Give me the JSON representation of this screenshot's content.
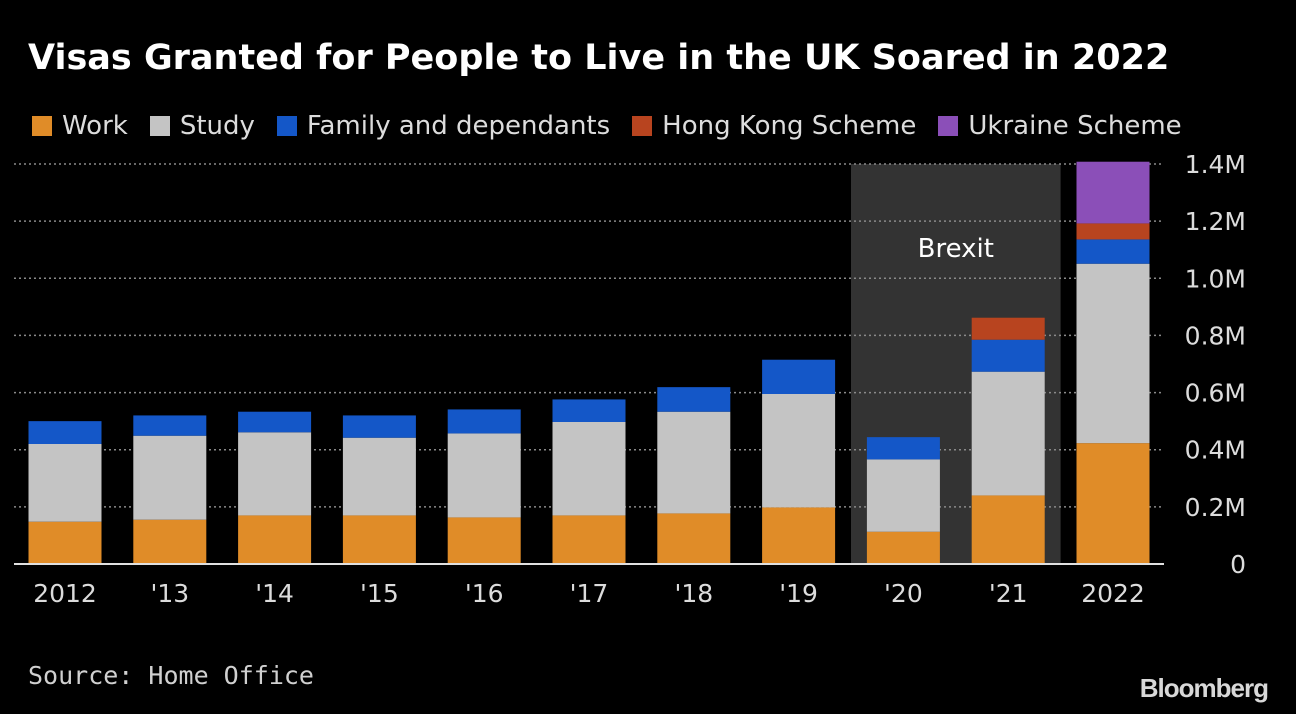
{
  "chart_data": {
    "type": "bar",
    "stacked": true,
    "title": "Visas Granted for People to Live in the UK Soared in 2022",
    "categories": [
      "2012",
      "'13",
      "'14",
      "'15",
      "'16",
      "'17",
      "'18",
      "'19",
      "'20",
      "'21",
      "2022"
    ],
    "series": [
      {
        "name": "Work",
        "color": "#e08c28",
        "values": [
          148000,
          155000,
          170000,
          170000,
          163000,
          170000,
          177000,
          198000,
          113000,
          240000,
          423000
        ]
      },
      {
        "name": "Study",
        "color": "#c4c4c4",
        "values": [
          272000,
          294000,
          291000,
          272000,
          294000,
          327000,
          356000,
          397000,
          253000,
          433000,
          628000
        ]
      },
      {
        "name": "Family and dependants",
        "color": "#1457c8",
        "values": [
          80000,
          71000,
          72000,
          78000,
          84000,
          79000,
          86000,
          120000,
          78000,
          112000,
          85000
        ]
      },
      {
        "name": "Hong Kong Scheme",
        "color": "#b8441f",
        "values": [
          0,
          0,
          0,
          0,
          0,
          0,
          0,
          0,
          0,
          77000,
          56000
        ]
      },
      {
        "name": "Ukraine Scheme",
        "color": "#8b4fb8",
        "values": [
          0,
          0,
          0,
          0,
          0,
          0,
          0,
          0,
          0,
          0,
          216000
        ]
      }
    ],
    "ylim": [
      0,
      1400000
    ],
    "yticks": [
      0,
      200000,
      400000,
      600000,
      800000,
      1000000,
      1200000,
      1400000
    ],
    "ytick_labels": [
      "0",
      "0.2M",
      "0.4M",
      "0.6M",
      "0.8M",
      "1.0M",
      "1.2M",
      "1.4M"
    ],
    "y_axis_side": "right",
    "grid": true,
    "highlight_band": {
      "label": "Brexit",
      "from": "'20",
      "to": "'21",
      "color": "#333333"
    },
    "xlabel": "",
    "ylabel": ""
  },
  "footer": {
    "source": "Source: Home Office",
    "brand": "Bloomberg"
  }
}
